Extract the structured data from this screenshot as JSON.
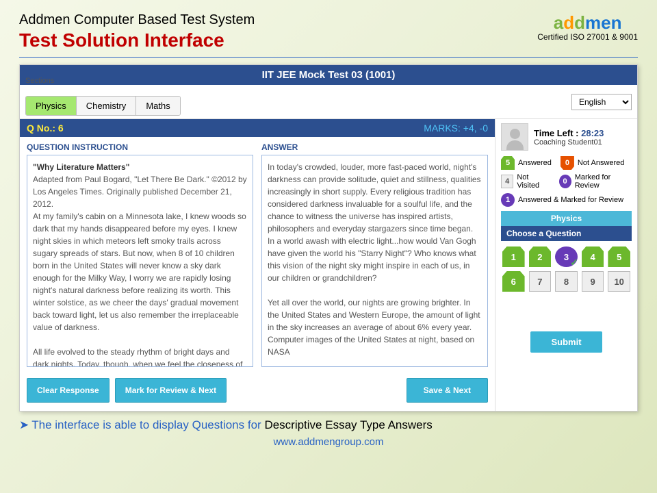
{
  "header": {
    "system_name": "Addmen Computer Based Test System",
    "page_title": "Test Solution Interface",
    "logo_text": "addmen",
    "certification": "Certified ISO 27001 & 9001"
  },
  "test": {
    "title": "IIT JEE Mock Test 03 (1001)",
    "sections_label": "Sections",
    "sections": [
      "Physics",
      "Chemistry",
      "Maths"
    ],
    "active_section": 0,
    "language": "English"
  },
  "question": {
    "number_label": "Q No.: 6",
    "marks_label": "MARKS: +4, -0",
    "instruction_heading": "QUESTION INSTRUCTION",
    "answer_heading": "ANSWER",
    "instruction_title": "\"Why Literature Matters\"",
    "instruction_body": "Adapted from Paul Bogard, \"Let There Be Dark.\" ©2012 by Los Angeles Times. Originally published December 21, 2012.\nAt my family's cabin on a Minnesota lake, I knew woods so dark that my hands disappeared before my eyes. I knew night skies in which meteors left smoky trails across sugary spreads of stars. But now, when 8 of 10 children born in the United States will never know a sky dark enough for the Milky Way, I worry we are rapidly losing night's natural darkness before realizing its worth. This winter solstice, as we cheer the days' gradual movement back toward light, let us also remember the irreplaceable value of darkness.\n\nAll life evolved to the steady rhythm of bright days and dark nights. Today, though, when we feel the closeness of nightfall, we reach quickly for a light",
    "answer_body": "In today's crowded, louder, more fast-paced world, night's darkness can provide solitude, quiet and stillness, qualities increasingly in short supply. Every religious tradition has considered darkness invaluable for a soulful life, and the chance to witness the universe has inspired artists, philosophers and everyday stargazers since time began. In a world awash with electric light...how would Van Gogh have given the world his \"Starry Night\"? Who knows what this vision of the night sky might inspire in each of us, in our children or grandchildren?\n\nYet all over the world, our nights are growing brighter. In the United States and Western Europe, the amount of light in the sky increases an average of about 6% every year. Computer images of the United States at night, based on NASA"
  },
  "buttons": {
    "clear": "Clear Response",
    "mark": "Mark for Review & Next",
    "save": "Save & Next",
    "submit": "Submit"
  },
  "sidebar": {
    "time_label": "Time Left : ",
    "time_value": "28:23",
    "student_name": "Coaching Student01",
    "legend": {
      "answered": {
        "count": "5",
        "label": "Answered"
      },
      "not_answered": {
        "count": "0",
        "label": "Not Answered"
      },
      "not_visited": {
        "count": "4",
        "label": "Not Visited"
      },
      "marked": {
        "count": "0",
        "label": "Marked for Review"
      },
      "answered_marked": {
        "count": "1",
        "label": "Answered & Marked for Review"
      }
    },
    "section_name": "Physics",
    "choose_label": "Choose a Question",
    "questions": [
      {
        "n": "1",
        "state": "answered"
      },
      {
        "n": "2",
        "state": "answered"
      },
      {
        "n": "3",
        "state": "marked"
      },
      {
        "n": "4",
        "state": "answered"
      },
      {
        "n": "5",
        "state": "answered"
      },
      {
        "n": "6",
        "state": "answered"
      },
      {
        "n": "7",
        "state": "notvisited"
      },
      {
        "n": "8",
        "state": "notvisited"
      },
      {
        "n": "9",
        "state": "notvisited"
      },
      {
        "n": "10",
        "state": "notvisited"
      }
    ]
  },
  "footer": {
    "note_prefix": "The interface is able to display Questions for ",
    "note_bold": "Descriptive Essay Type Answers",
    "url": "www.addmengroup.com"
  }
}
